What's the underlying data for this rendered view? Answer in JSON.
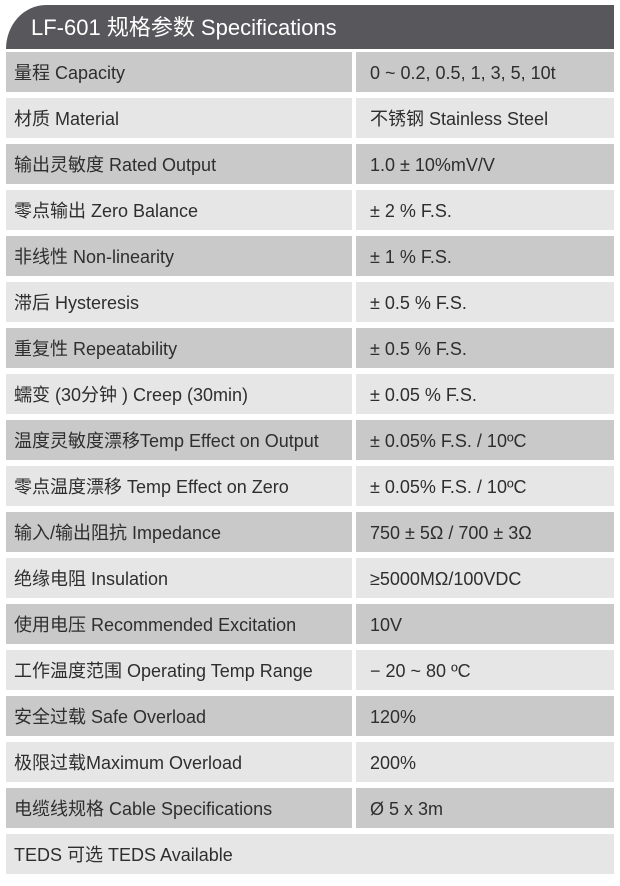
{
  "title": "LF-601 规格参数 Specifications",
  "rows": [
    {
      "label": "量程 Capacity",
      "value": "0 ~ 0.2, 0.5, 1, 3, 5, 10t"
    },
    {
      "label": "材质 Material",
      "value": "不锈钢 Stainless Steel"
    },
    {
      "label": "输出灵敏度 Rated Output",
      "value": "1.0 ± 10%mV/V"
    },
    {
      "label": "零点输出  Zero Balance",
      "value": "± 2 % F.S."
    },
    {
      "label": "非线性 Non-linearity",
      "value": "± 1 % F.S."
    },
    {
      "label": "滞后 Hysteresis",
      "value": "± 0.5 % F.S."
    },
    {
      "label": "重复性 Repeatability",
      "value": "± 0.5 % F.S."
    },
    {
      "label": "蠕变 (30分钟 ) Creep (30min)",
      "value": "± 0.05 % F.S."
    },
    {
      "label": "温度灵敏度漂移Temp Effect on Output",
      "value": "± 0.05% F.S. / 10ºC"
    },
    {
      "label": "零点温度漂移 Temp Effect on Zero",
      "value": "± 0.05% F.S. / 10ºC"
    },
    {
      "label": "输入/输出阻抗 Impedance",
      "value": "750 ± 5Ω / 700 ± 3Ω"
    },
    {
      "label": "绝缘电阻  Insulation",
      "value": "≥5000MΩ/100VDC"
    },
    {
      "label": "使用电压 Recommended Excitation",
      "value": "10V"
    },
    {
      "label": "工作温度范围 Operating Temp  Range",
      "value": "− 20 ~ 80 ºC"
    },
    {
      "label": "安全过载 Safe Overload",
      "value": "120%"
    },
    {
      "label": "极限过载Maximum Overload",
      "value": "200%"
    },
    {
      "label": "电缆线规格 Cable Specifications",
      "value": "Ø 5 x 3m"
    }
  ],
  "footer_row": "TEDS 可选 TEDS Available"
}
